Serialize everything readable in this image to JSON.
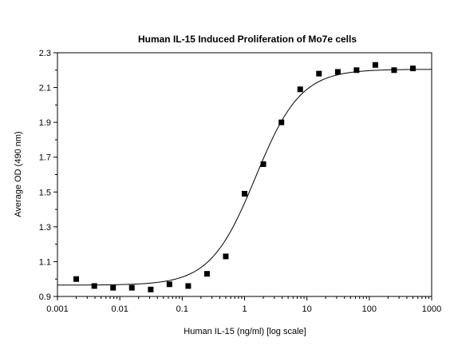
{
  "chart_data": {
    "type": "scatter",
    "title": "Human IL-15 Induced Proliferation of Mo7e cells",
    "xlabel": "Human IL-15 (ng/ml) [log scale]",
    "ylabel": "Average OD (490 nm)",
    "x_scale": "log",
    "xlim": [
      0.001,
      1000
    ],
    "ylim": [
      0.9,
      2.3
    ],
    "x_ticks": [
      "0.001",
      "0.01",
      "0.1",
      "1",
      "10",
      "100",
      "1000"
    ],
    "y_ticks": [
      "0.9",
      "1.1",
      "1.3",
      "1.5",
      "1.7",
      "1.9",
      "2.1",
      "2.3"
    ],
    "grid": false,
    "series": [
      {
        "marker": "square",
        "color": "#000000",
        "x": [
          0.002,
          0.0039,
          0.0078,
          0.0156,
          0.0313,
          0.0625,
          0.125,
          0.25,
          0.5,
          1.0,
          2.0,
          3.9,
          7.8,
          15.6,
          31.3,
          62.5,
          125,
          250,
          500
        ],
        "y": [
          1.0,
          0.96,
          0.95,
          0.95,
          0.94,
          0.97,
          0.96,
          1.03,
          1.13,
          1.49,
          1.66,
          1.9,
          2.09,
          2.18,
          2.19,
          2.2,
          2.23,
          2.2,
          2.21
        ]
      }
    ],
    "fit_curve": {
      "type": "4-parameter logistic",
      "color": "#000000",
      "bottom": 0.965,
      "top": 2.205,
      "ec50": 1.5,
      "hill": 1.2
    }
  }
}
